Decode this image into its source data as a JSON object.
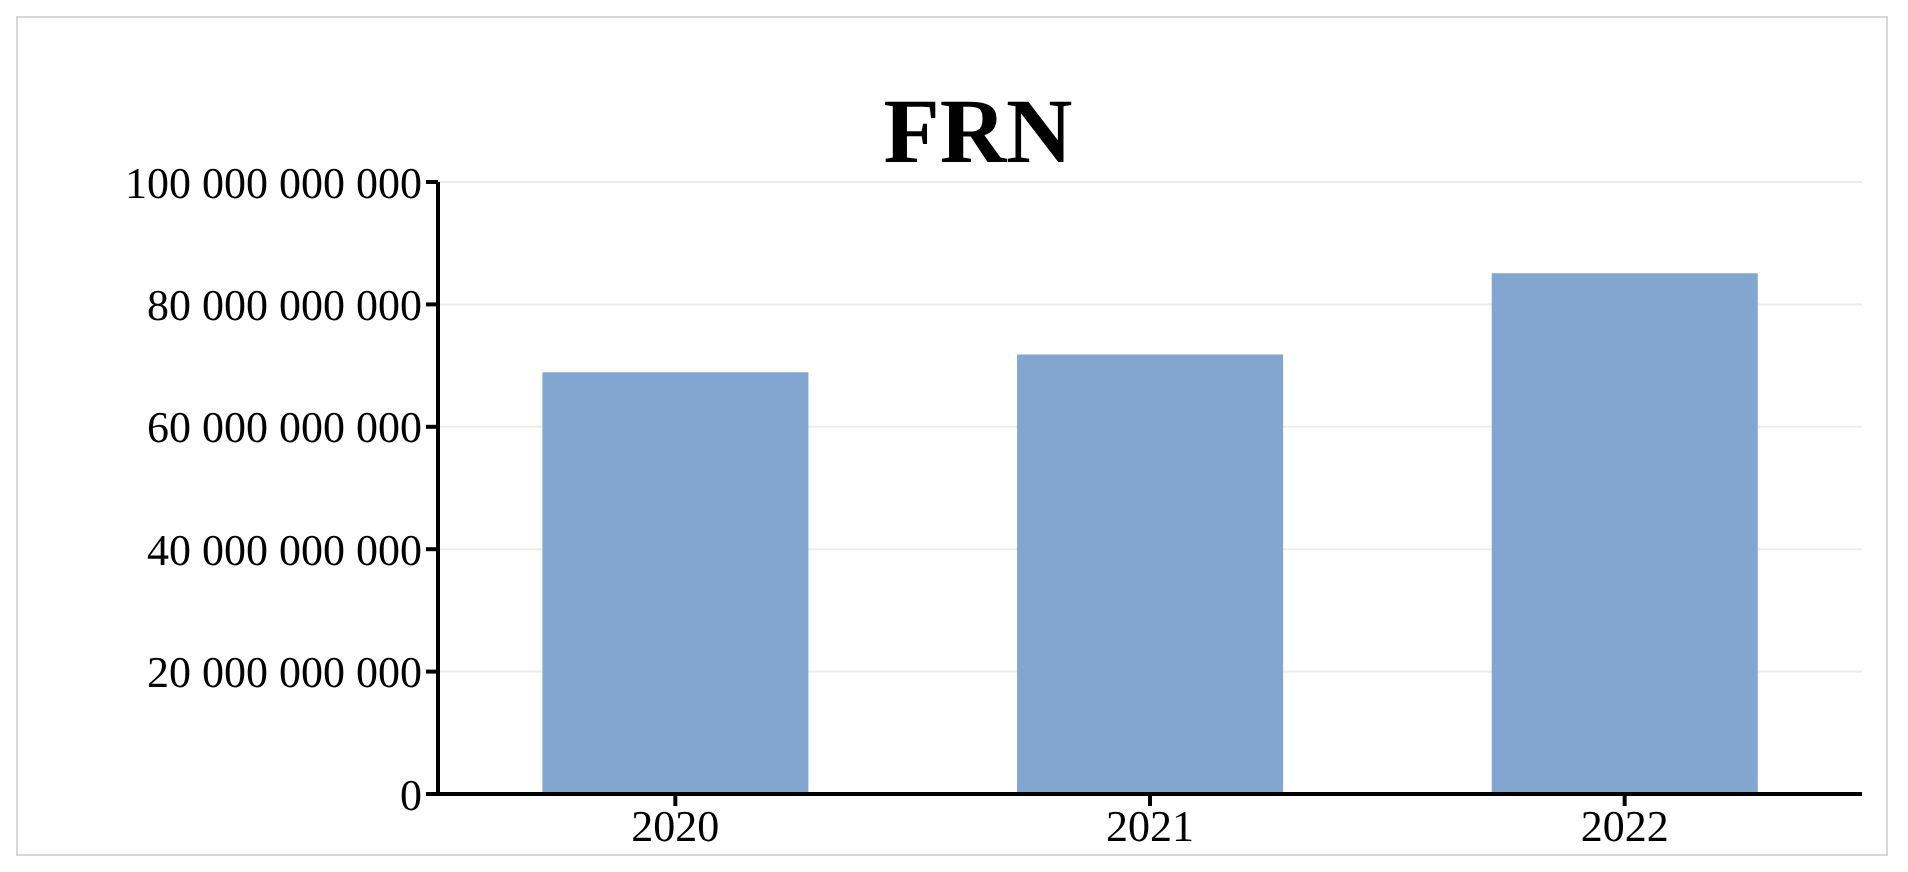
{
  "chart_data": {
    "type": "bar",
    "title": "FRN",
    "categories": [
      "2020",
      "2021",
      "2022"
    ],
    "values": [
      68900000000,
      71800000000,
      85100000000
    ],
    "color": "#82a6cf",
    "ylim": [
      0,
      100000000000
    ],
    "yticks": [
      {
        "value": 0,
        "label": "0"
      },
      {
        "value": 20000000000,
        "label": "20 000 000 000"
      },
      {
        "value": 40000000000,
        "label": "40 000 000 000"
      },
      {
        "value": 60000000000,
        "label": "60 000 000 000"
      },
      {
        "value": 80000000000,
        "label": "80 000 000 000"
      },
      {
        "value": 100000000000,
        "label": "100 000 000 000"
      }
    ],
    "grid": "y"
  }
}
